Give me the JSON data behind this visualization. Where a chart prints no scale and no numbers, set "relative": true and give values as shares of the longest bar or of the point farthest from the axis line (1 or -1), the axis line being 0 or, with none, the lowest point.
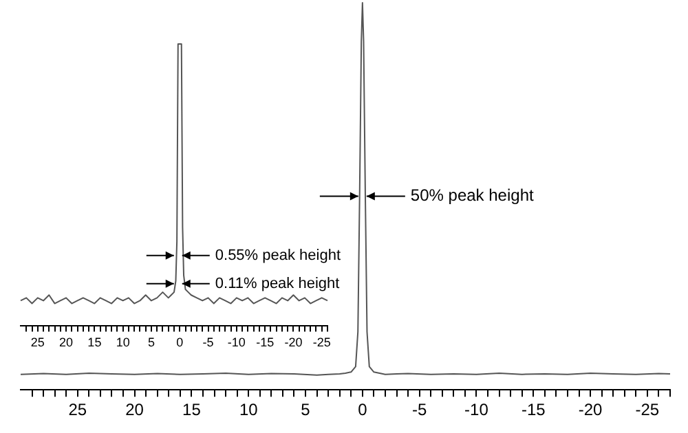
{
  "chart_data": [
    {
      "type": "line",
      "relative": true,
      "tick_labels": "x",
      "xlim": [
        30,
        -27
      ],
      "xticks": [
        {
          "value": 29,
          "label": null
        },
        {
          "value": 28,
          "label": null
        },
        {
          "value": 27,
          "label": null
        },
        {
          "value": 26,
          "label": null
        },
        25,
        {
          "value": 24,
          "label": null
        },
        {
          "value": 23,
          "label": null
        },
        {
          "value": 22,
          "label": null
        },
        {
          "value": 21,
          "label": null
        },
        20,
        {
          "value": 19,
          "label": null
        },
        {
          "value": 18,
          "label": null
        },
        {
          "value": 17,
          "label": null
        },
        {
          "value": 16,
          "label": null
        },
        15,
        {
          "value": 14,
          "label": null
        },
        {
          "value": 13,
          "label": null
        },
        {
          "value": 12,
          "label": null
        },
        {
          "value": 11,
          "label": null
        },
        10,
        {
          "value": 9,
          "label": null
        },
        {
          "value": 8,
          "label": null
        },
        {
          "value": 7,
          "label": null
        },
        {
          "value": 6,
          "label": null
        },
        5,
        {
          "value": 4,
          "label": null
        },
        {
          "value": 3,
          "label": null
        },
        {
          "value": 2,
          "label": null
        },
        {
          "value": 1,
          "label": null
        },
        0,
        {
          "value": -1,
          "label": null
        },
        {
          "value": -2,
          "label": null
        },
        {
          "value": -3,
          "label": null
        },
        {
          "value": -4,
          "label": null
        },
        -5,
        {
          "value": -6,
          "label": null
        },
        {
          "value": -7,
          "label": null
        },
        {
          "value": -8,
          "label": null
        },
        {
          "value": -9,
          "label": null
        },
        -10,
        {
          "value": -11,
          "label": null
        },
        {
          "value": -12,
          "label": null
        },
        {
          "value": -13,
          "label": null
        },
        {
          "value": -14,
          "label": null
        },
        -15,
        {
          "value": -16,
          "label": null
        },
        {
          "value": -17,
          "label": null
        },
        {
          "value": -18,
          "label": null
        },
        {
          "value": -19,
          "label": null
        },
        -20,
        {
          "value": -21,
          "label": null
        },
        {
          "value": -22,
          "label": null
        },
        {
          "value": -23,
          "label": null
        },
        {
          "value": -24,
          "label": null
        },
        -25,
        {
          "value": -26,
          "label": null
        },
        {
          "value": -27,
          "label": null
        }
      ],
      "series": [
        {
          "color": "#555555",
          "x": [
            30,
            28,
            26,
            24,
            22,
            20,
            18,
            16,
            14,
            12,
            10,
            8,
            6,
            4,
            3,
            2,
            1.5,
            1,
            0.6,
            0.4,
            0.25,
            0.1,
            0,
            -0.1,
            -0.25,
            -0.4,
            -0.6,
            -1,
            -1.5,
            -2,
            -3,
            -4,
            -6,
            -8,
            -10,
            -12,
            -14,
            -16,
            -18,
            -20,
            -22,
            -24,
            -26,
            -27
          ],
          "values": [
            0.04,
            0.042,
            0.04,
            0.043,
            0.041,
            0.04,
            0.042,
            0.04,
            0.041,
            0.043,
            0.04,
            0.042,
            0.041,
            0.038,
            0.04,
            0.041,
            0.043,
            0.046,
            0.06,
            0.15,
            0.5,
            0.9,
            1,
            0.9,
            0.5,
            0.15,
            0.06,
            0.046,
            0.043,
            0.04,
            0.041,
            0.042,
            0.04,
            0.041,
            0.04,
            0.043,
            0.04,
            0.041,
            0.04,
            0.043,
            0.041,
            0.04,
            0.042,
            0.041
          ]
        }
      ],
      "annotations": [
        "50% peak height"
      ]
    },
    {
      "type": "line",
      "relative": true,
      "tick_labels": "x",
      "xlim": [
        28,
        -26
      ],
      "xticks": [
        {
          "value": 27,
          "label": null
        },
        {
          "value": 26,
          "label": null
        },
        25,
        {
          "value": 24,
          "label": null
        },
        {
          "value": 23,
          "label": null
        },
        {
          "value": 22,
          "label": null
        },
        {
          "value": 21,
          "label": null
        },
        20,
        {
          "value": 19,
          "label": null
        },
        {
          "value": 18,
          "label": null
        },
        {
          "value": 17,
          "label": null
        },
        {
          "value": 16,
          "label": null
        },
        15,
        {
          "value": 14,
          "label": null
        },
        {
          "value": 13,
          "label": null
        },
        {
          "value": 12,
          "label": null
        },
        {
          "value": 11,
          "label": null
        },
        10,
        {
          "value": 9,
          "label": null
        },
        {
          "value": 8,
          "label": null
        },
        {
          "value": 7,
          "label": null
        },
        {
          "value": 6,
          "label": null
        },
        5,
        {
          "value": 4,
          "label": null
        },
        {
          "value": 3,
          "label": null
        },
        {
          "value": 2,
          "label": null
        },
        {
          "value": 1,
          "label": null
        },
        0,
        {
          "value": -1,
          "label": null
        },
        {
          "value": -2,
          "label": null
        },
        {
          "value": -3,
          "label": null
        },
        {
          "value": -4,
          "label": null
        },
        -5,
        {
          "value": -6,
          "label": null
        },
        {
          "value": -7,
          "label": null
        },
        {
          "value": -8,
          "label": null
        },
        {
          "value": -9,
          "label": null
        },
        -10,
        {
          "value": -11,
          "label": null
        },
        {
          "value": -12,
          "label": null
        },
        {
          "value": -13,
          "label": null
        },
        {
          "value": -14,
          "label": null
        },
        -15,
        {
          "value": -16,
          "label": null
        },
        {
          "value": -17,
          "label": null
        },
        {
          "value": -18,
          "label": null
        },
        {
          "value": -19,
          "label": null
        },
        -20,
        {
          "value": -21,
          "label": null
        },
        {
          "value": -22,
          "label": null
        },
        {
          "value": -23,
          "label": null
        },
        {
          "value": -24,
          "label": null
        },
        -25,
        {
          "value": -26,
          "label": null
        }
      ],
      "series": [
        {
          "color": "#555555",
          "x": [
            28,
            27,
            26,
            25,
            24,
            23,
            22,
            21,
            20,
            19,
            18,
            17,
            16,
            15,
            14,
            13,
            12,
            11,
            10,
            9,
            8,
            7,
            6,
            5,
            4,
            3,
            2,
            1.5,
            1,
            0.7,
            0.5,
            0.3,
            0,
            -0.3,
            -0.5,
            -0.7,
            -1,
            -1.5,
            -2,
            -3,
            -4,
            -5,
            -6,
            -7,
            -8,
            -9,
            -10,
            -11,
            -12,
            -13,
            -14,
            -15,
            -16,
            -17,
            -18,
            -19,
            -20,
            -21,
            -22,
            -23,
            -24,
            -25,
            -26
          ],
          "values": [
            0.09,
            0.1,
            0.08,
            0.1,
            0.09,
            0.11,
            0.08,
            0.09,
            0.1,
            0.08,
            0.09,
            0.1,
            0.09,
            0.08,
            0.1,
            0.09,
            0.08,
            0.1,
            0.09,
            0.1,
            0.08,
            0.09,
            0.11,
            0.09,
            0.1,
            0.12,
            0.1,
            0.11,
            0.12,
            0.16,
            0.3,
            1,
            1,
            1,
            0.35,
            0.18,
            0.13,
            0.12,
            0.11,
            0.1,
            0.09,
            0.1,
            0.08,
            0.1,
            0.09,
            0.08,
            0.1,
            0.09,
            0.1,
            0.08,
            0.09,
            0.1,
            0.09,
            0.08,
            0.1,
            0.09,
            0.11,
            0.09,
            0.1,
            0.08,
            0.09,
            0.1,
            0.09
          ]
        }
      ],
      "annotations": [
        "0.55% peak height",
        "0.11% peak height"
      ]
    }
  ]
}
